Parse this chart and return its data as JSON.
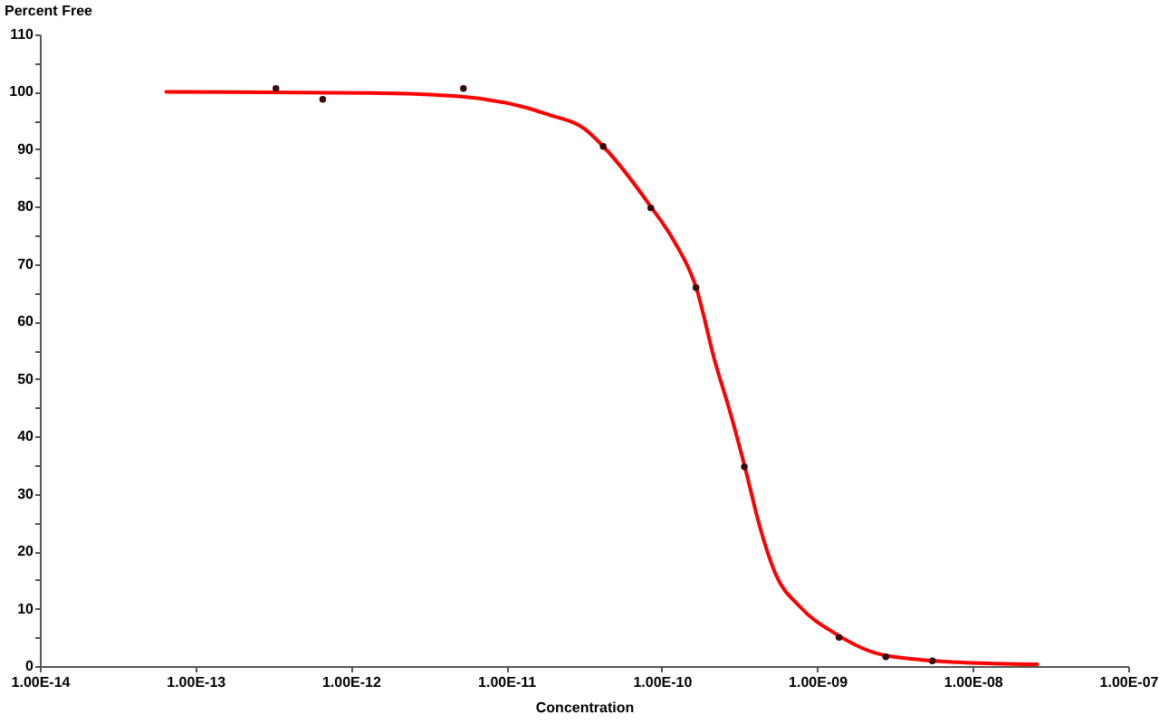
{
  "chart_data": {
    "type": "line",
    "xlabel": "Concentration",
    "ylabel": "Percent Free",
    "log": "x",
    "grid": false,
    "xlim": [
      1e-14,
      1e-07
    ],
    "ylim": [
      0,
      110
    ],
    "xticks": [
      {
        "value": 1e-14,
        "label": "1.00E-14"
      },
      {
        "value": 1e-13,
        "label": "1.00E-13"
      },
      {
        "value": 1e-12,
        "label": "1.00E-12"
      },
      {
        "value": 1e-11,
        "label": "1.00E-11"
      },
      {
        "value": 1e-10,
        "label": "1.00E-10"
      },
      {
        "value": 1e-09,
        "label": "1.00E-09"
      },
      {
        "value": 1e-08,
        "label": "1.00E-08"
      },
      {
        "value": 1e-07,
        "label": "1.00E-07"
      }
    ],
    "yticks": [
      0,
      {
        "value": 5,
        "label": null
      },
      10,
      {
        "value": 15,
        "label": null
      },
      20,
      {
        "value": 25,
        "label": null
      },
      30,
      {
        "value": 35,
        "label": null
      },
      40,
      {
        "value": 45,
        "label": null
      },
      50,
      {
        "value": 55,
        "label": null
      },
      60,
      {
        "value": 65,
        "label": null
      },
      70,
      {
        "value": 75,
        "label": null
      },
      80,
      {
        "value": 85,
        "label": null
      },
      90,
      {
        "value": 95,
        "label": null
      },
      100,
      {
        "value": 105,
        "label": null
      },
      110
    ],
    "series": [
      {
        "type": "line",
        "color": "#ff0000",
        "marker": "none",
        "line_style": "solid",
        "x": [
          6.5e-14,
          1.34e-12,
          5e-12,
          1.89e-11,
          3.2e-11,
          4.2e-11,
          8.5e-11,
          1.2e-10,
          1.66e-10,
          2.2e-10,
          2.7e-10,
          3.4e-10,
          4.3e-10,
          5.4e-10,
          7.7e-10,
          1.3e-09,
          2.7e-09,
          9e-09,
          2.6e-08
        ],
        "values": [
          100,
          99.8,
          99.2,
          96,
          93.5,
          90.5,
          80,
          74,
          66,
          53,
          45,
          35,
          24,
          16,
          10.4,
          5.7,
          1.9,
          0.6,
          0.3
        ]
      },
      {
        "type": "scatter",
        "color": "#3a0a0a",
        "marker": "circle",
        "x": [
          3.3e-13,
          6.6e-13,
          5.3e-12,
          4.2e-11,
          8.5e-11,
          1.66e-10,
          3.4e-10,
          1.38e-09,
          2.76e-09,
          5.5e-09
        ],
        "values": [
          100.6,
          98.7,
          100.6,
          90.5,
          79.8,
          65.9,
          34.7,
          5,
          1.6,
          0.9
        ]
      }
    ]
  }
}
